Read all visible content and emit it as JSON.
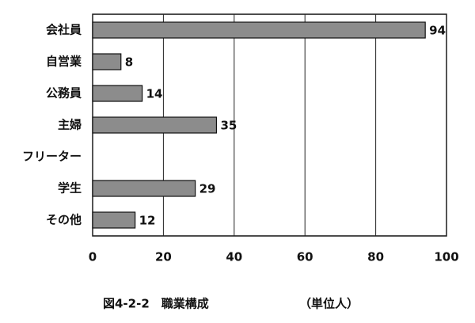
{
  "chart_data": {
    "type": "bar",
    "orientation": "horizontal",
    "categories": [
      "会社員",
      "自営業",
      "公務員",
      "主婦",
      "フリーター",
      "学生",
      "その他"
    ],
    "values": [
      94,
      8,
      14,
      35,
      null,
      29,
      12
    ],
    "color": "#8c8c8c",
    "xlim": [
      0,
      100
    ],
    "xticks": [
      0,
      20,
      40,
      60,
      80,
      100
    ],
    "grid": true,
    "caption": "図4-2-2　職業構成",
    "unit_note": "（単位人）"
  }
}
